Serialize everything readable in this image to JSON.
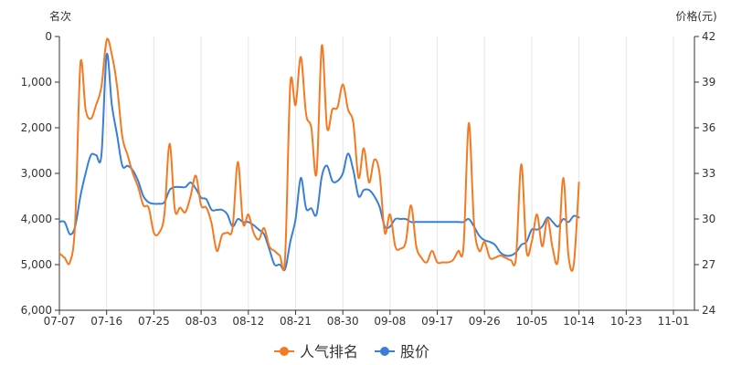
{
  "chart_data": {
    "type": "line",
    "y_left_title": "名次",
    "y_right_title": "价格(元)",
    "y_left_ticks": [
      "0",
      "1,000",
      "2,000",
      "3,000",
      "4,000",
      "5,000",
      "6,000"
    ],
    "y_right_ticks": [
      "24",
      "27",
      "30",
      "33",
      "36",
      "39",
      "42"
    ],
    "y_left_range": [
      6000,
      0
    ],
    "y_right_range": [
      24,
      42
    ],
    "x_ticks": [
      "07-07",
      "07-16",
      "07-25",
      "08-03",
      "08-12",
      "08-21",
      "08-30",
      "09-08",
      "09-17",
      "09-26",
      "10-05",
      "10-14",
      "10-23",
      "11-01"
    ],
    "x_range": [
      "2023-07-07",
      "2023-11-05"
    ],
    "grid": "vertical only",
    "legend_position": "bottom-center",
    "series": [
      {
        "name": "人气排名",
        "axis": "left",
        "color": "#f47920",
        "points": [
          [
            "2023-07-07",
            4750
          ],
          [
            "2023-07-08",
            4850
          ],
          [
            "2023-07-09",
            4950
          ],
          [
            "2023-07-10",
            4100
          ],
          [
            "2023-07-11",
            600
          ],
          [
            "2023-07-12",
            1600
          ],
          [
            "2023-07-13",
            1800
          ],
          [
            "2023-07-14",
            1500
          ],
          [
            "2023-07-15",
            1100
          ],
          [
            "2023-07-16",
            80
          ],
          [
            "2023-07-17",
            400
          ],
          [
            "2023-07-18",
            1100
          ],
          [
            "2023-07-19",
            2200
          ],
          [
            "2023-07-20",
            2600
          ],
          [
            "2023-07-21",
            3000
          ],
          [
            "2023-07-22",
            3300
          ],
          [
            "2023-07-23",
            3700
          ],
          [
            "2023-07-24",
            3750
          ],
          [
            "2023-07-25",
            4300
          ],
          [
            "2023-07-26",
            4300
          ],
          [
            "2023-07-27",
            3900
          ],
          [
            "2023-07-28",
            2350
          ],
          [
            "2023-07-29",
            3800
          ],
          [
            "2023-07-30",
            3750
          ],
          [
            "2023-07-31",
            3850
          ],
          [
            "2023-08-01",
            3500
          ],
          [
            "2023-08-02",
            3050
          ],
          [
            "2023-08-03",
            3700
          ],
          [
            "2023-08-04",
            3750
          ],
          [
            "2023-08-05",
            4100
          ],
          [
            "2023-08-06",
            4700
          ],
          [
            "2023-08-07",
            4350
          ],
          [
            "2023-08-08",
            4300
          ],
          [
            "2023-08-09",
            4200
          ],
          [
            "2023-08-10",
            2750
          ],
          [
            "2023-08-11",
            4100
          ],
          [
            "2023-08-12",
            3900
          ],
          [
            "2023-08-13",
            4300
          ],
          [
            "2023-08-14",
            4450
          ],
          [
            "2023-08-15",
            4200
          ],
          [
            "2023-08-16",
            4600
          ],
          [
            "2023-08-17",
            4700
          ],
          [
            "2023-08-18",
            4800
          ],
          [
            "2023-08-19",
            4850
          ],
          [
            "2023-08-20",
            1050
          ],
          [
            "2023-08-21",
            1500
          ],
          [
            "2023-08-22",
            450
          ],
          [
            "2023-08-23",
            1700
          ],
          [
            "2023-08-24",
            2000
          ],
          [
            "2023-08-25",
            3000
          ],
          [
            "2023-08-26",
            200
          ],
          [
            "2023-08-27",
            2000
          ],
          [
            "2023-08-28",
            1600
          ],
          [
            "2023-08-29",
            1550
          ],
          [
            "2023-08-30",
            1050
          ],
          [
            "2023-08-31",
            1600
          ],
          [
            "2023-09-01",
            1900
          ],
          [
            "2023-09-02",
            3100
          ],
          [
            "2023-09-03",
            2450
          ],
          [
            "2023-09-04",
            3200
          ],
          [
            "2023-09-05",
            2700
          ],
          [
            "2023-09-06",
            3000
          ],
          [
            "2023-09-07",
            4300
          ],
          [
            "2023-09-08",
            3900
          ],
          [
            "2023-09-09",
            4600
          ],
          [
            "2023-09-10",
            4650
          ],
          [
            "2023-09-11",
            4500
          ],
          [
            "2023-09-12",
            3700
          ],
          [
            "2023-09-13",
            4600
          ],
          [
            "2023-09-14",
            4850
          ],
          [
            "2023-09-15",
            4950
          ],
          [
            "2023-09-16",
            4700
          ],
          [
            "2023-09-17",
            4950
          ],
          [
            "2023-09-18",
            4950
          ],
          [
            "2023-09-19",
            4950
          ],
          [
            "2023-09-20",
            4900
          ],
          [
            "2023-09-21",
            4700
          ],
          [
            "2023-09-22",
            4600
          ],
          [
            "2023-09-23",
            1900
          ],
          [
            "2023-09-24",
            4100
          ],
          [
            "2023-09-25",
            4700
          ],
          [
            "2023-09-26",
            4500
          ],
          [
            "2023-09-27",
            4850
          ],
          [
            "2023-09-28",
            4850
          ],
          [
            "2023-09-29",
            4800
          ],
          [
            "2023-09-30",
            4850
          ],
          [
            "2023-10-01",
            4900
          ],
          [
            "2023-10-02",
            4850
          ],
          [
            "2023-10-03",
            2800
          ],
          [
            "2023-10-04",
            4700
          ],
          [
            "2023-10-05",
            4500
          ],
          [
            "2023-10-06",
            3900
          ],
          [
            "2023-10-07",
            4600
          ],
          [
            "2023-10-08",
            4000
          ],
          [
            "2023-10-09",
            4650
          ],
          [
            "2023-10-10",
            4900
          ],
          [
            "2023-10-11",
            3100
          ],
          [
            "2023-10-12",
            4800
          ],
          [
            "2023-10-13",
            5000
          ],
          [
            "2023-10-14",
            3200
          ]
        ]
      },
      {
        "name": "股价",
        "axis": "right",
        "color": "#3a7fd5",
        "points": [
          [
            "2023-07-07",
            29.8
          ],
          [
            "2023-07-08",
            29.8
          ],
          [
            "2023-07-09",
            29.0
          ],
          [
            "2023-07-10",
            29.5
          ],
          [
            "2023-07-11",
            31.5
          ],
          [
            "2023-07-12",
            33.0
          ],
          [
            "2023-07-13",
            34.2
          ],
          [
            "2023-07-14",
            34.2
          ],
          [
            "2023-07-15",
            34.2
          ],
          [
            "2023-07-16",
            40.8
          ],
          [
            "2023-07-17",
            37.5
          ],
          [
            "2023-07-18",
            35.5
          ],
          [
            "2023-07-19",
            33.5
          ],
          [
            "2023-07-20",
            33.5
          ],
          [
            "2023-07-21",
            33.2
          ],
          [
            "2023-07-22",
            32.5
          ],
          [
            "2023-07-23",
            31.5
          ],
          [
            "2023-07-24",
            31.1
          ],
          [
            "2023-07-25",
            31.0
          ],
          [
            "2023-07-26",
            31.0
          ],
          [
            "2023-07-27",
            31.1
          ],
          [
            "2023-07-28",
            31.9
          ],
          [
            "2023-07-29",
            32.1
          ],
          [
            "2023-07-30",
            32.1
          ],
          [
            "2023-07-31",
            32.1
          ],
          [
            "2023-08-01",
            32.4
          ],
          [
            "2023-08-02",
            32.0
          ],
          [
            "2023-08-03",
            31.4
          ],
          [
            "2023-08-04",
            31.3
          ],
          [
            "2023-08-05",
            30.6
          ],
          [
            "2023-08-06",
            30.6
          ],
          [
            "2023-08-07",
            30.6
          ],
          [
            "2023-08-08",
            30.3
          ],
          [
            "2023-08-09",
            29.5
          ],
          [
            "2023-08-10",
            30.0
          ],
          [
            "2023-08-11",
            29.8
          ],
          [
            "2023-08-12",
            29.8
          ],
          [
            "2023-08-13",
            29.6
          ],
          [
            "2023-08-14",
            29.3
          ],
          [
            "2023-08-15",
            29.0
          ],
          [
            "2023-08-16",
            28.0
          ],
          [
            "2023-08-17",
            27.0
          ],
          [
            "2023-08-18",
            27.0
          ],
          [
            "2023-08-19",
            26.7
          ],
          [
            "2023-08-20",
            28.5
          ],
          [
            "2023-08-21",
            30.0
          ],
          [
            "2023-08-22",
            32.7
          ],
          [
            "2023-08-23",
            30.7
          ],
          [
            "2023-08-24",
            30.7
          ],
          [
            "2023-08-25",
            30.3
          ],
          [
            "2023-08-26",
            32.8
          ],
          [
            "2023-08-27",
            33.5
          ],
          [
            "2023-08-28",
            32.5
          ],
          [
            "2023-08-29",
            32.5
          ],
          [
            "2023-08-30",
            33.0
          ],
          [
            "2023-08-31",
            34.3
          ],
          [
            "2023-09-01",
            33.2
          ],
          [
            "2023-09-02",
            31.5
          ],
          [
            "2023-09-03",
            31.9
          ],
          [
            "2023-09-04",
            31.9
          ],
          [
            "2023-09-05",
            31.5
          ],
          [
            "2023-09-06",
            30.8
          ],
          [
            "2023-09-07",
            29.5
          ],
          [
            "2023-09-08",
            29.5
          ],
          [
            "2023-09-09",
            30.0
          ],
          [
            "2023-09-10",
            30.0
          ],
          [
            "2023-09-11",
            30.0
          ],
          [
            "2023-09-12",
            29.8
          ],
          [
            "2023-09-13",
            29.8
          ],
          [
            "2023-09-14",
            29.8
          ],
          [
            "2023-09-15",
            29.8
          ],
          [
            "2023-09-16",
            29.8
          ],
          [
            "2023-09-17",
            29.8
          ],
          [
            "2023-09-18",
            29.8
          ],
          [
            "2023-09-19",
            29.8
          ],
          [
            "2023-09-20",
            29.8
          ],
          [
            "2023-09-21",
            29.8
          ],
          [
            "2023-09-22",
            29.8
          ],
          [
            "2023-09-23",
            30.0
          ],
          [
            "2023-09-24",
            29.5
          ],
          [
            "2023-09-25",
            28.9
          ],
          [
            "2023-09-26",
            28.6
          ],
          [
            "2023-09-27",
            28.5
          ],
          [
            "2023-09-28",
            28.3
          ],
          [
            "2023-09-29",
            27.8
          ],
          [
            "2023-09-30",
            27.6
          ],
          [
            "2023-10-01",
            27.6
          ],
          [
            "2023-10-02",
            27.8
          ],
          [
            "2023-10-03",
            28.3
          ],
          [
            "2023-10-04",
            28.5
          ],
          [
            "2023-10-05",
            29.3
          ],
          [
            "2023-10-06",
            29.3
          ],
          [
            "2023-10-07",
            29.5
          ],
          [
            "2023-10-08",
            30.1
          ],
          [
            "2023-10-09",
            29.8
          ],
          [
            "2023-10-10",
            29.5
          ],
          [
            "2023-10-11",
            30.0
          ],
          [
            "2023-10-12",
            29.8
          ],
          [
            "2023-10-13",
            30.2
          ],
          [
            "2023-10-14",
            30.1
          ]
        ]
      }
    ]
  }
}
